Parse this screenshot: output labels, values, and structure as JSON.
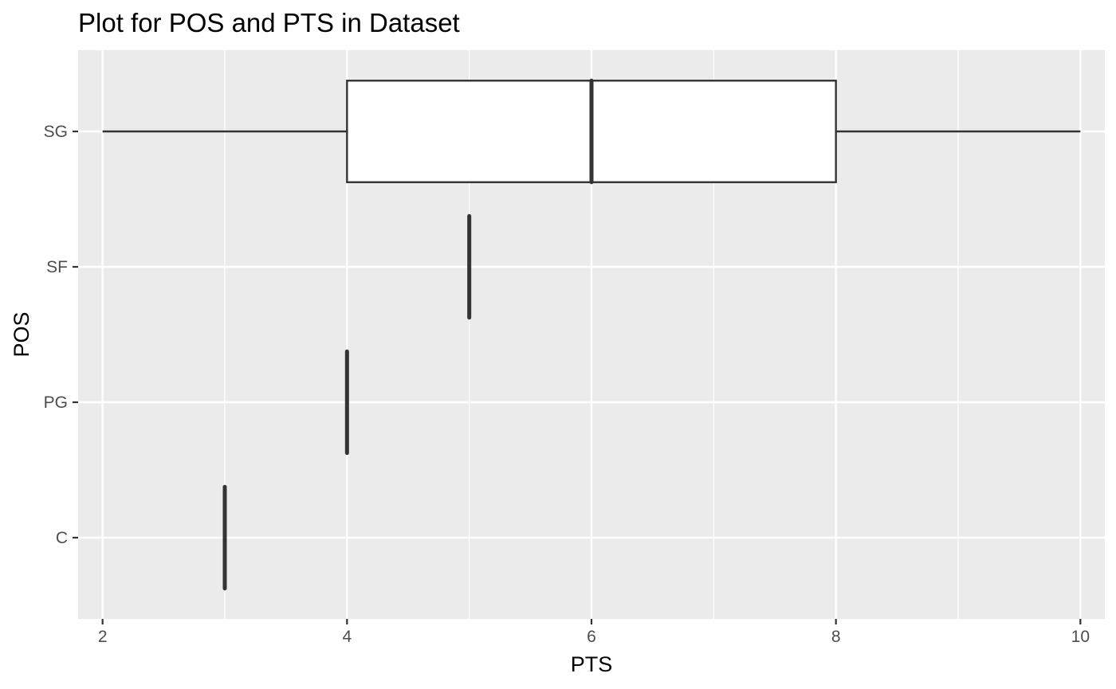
{
  "chart_data": {
    "type": "boxplot",
    "orientation": "horizontal",
    "title": "Plot for POS and PTS in Dataset",
    "xlabel": "PTS",
    "ylabel": "POS",
    "xlim": [
      1.8,
      10.2
    ],
    "x_ticks": [
      2,
      4,
      6,
      8,
      10
    ],
    "x_tick_labels": [
      "2",
      "4",
      "6",
      "8",
      "10"
    ],
    "categories": [
      "C",
      "PG",
      "SF",
      "SG"
    ],
    "boxes": [
      {
        "category": "C",
        "min": 3,
        "q1": 3,
        "median": 3,
        "q3": 3,
        "max": 3
      },
      {
        "category": "PG",
        "min": 4,
        "q1": 4,
        "median": 4,
        "q3": 4,
        "max": 4
      },
      {
        "category": "SF",
        "min": 5,
        "q1": 5,
        "median": 5,
        "q3": 5,
        "max": 5
      },
      {
        "category": "SG",
        "min": 2,
        "q1": 4,
        "median": 6,
        "q3": 8,
        "max": 10
      }
    ],
    "grid": true,
    "colors": {
      "panel": "#ebebeb",
      "grid": "#ffffff",
      "box_fill": "#ffffff",
      "box_line": "#333333"
    }
  }
}
